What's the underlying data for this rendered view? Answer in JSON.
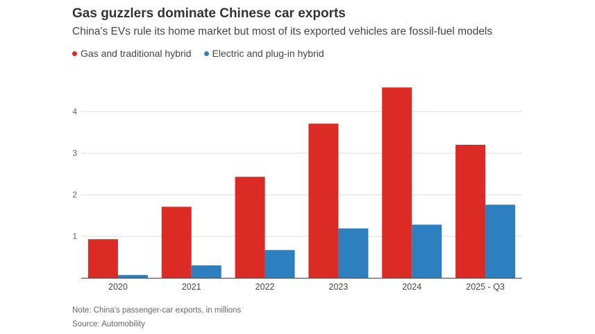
{
  "header": {
    "title": "Gas guzzlers dominate Chinese car exports",
    "subtitle": "China's EVs rule its home market but most of its exported vehicles are fossil-fuel models"
  },
  "footer": {
    "note": "Note: China's passenger-car exports, in millions",
    "source": "Source: Automobility"
  },
  "chart_data": {
    "type": "bar",
    "categories": [
      "2020",
      "2021",
      "2022",
      "2023",
      "2024",
      "2025 - Q3"
    ],
    "series": [
      {
        "name": "Gas and traditional hybrid",
        "color": "#dc2b24",
        "values": [
          0.93,
          1.71,
          2.43,
          3.71,
          4.58,
          3.2
        ]
      },
      {
        "name": "Electric and plug-in hybrid",
        "color": "#2e7fc0",
        "values": [
          0.07,
          0.3,
          0.67,
          1.19,
          1.28,
          1.76
        ]
      }
    ],
    "yticks": [
      1,
      2,
      3,
      4
    ],
    "ylim": [
      0,
      4.8
    ],
    "grid": true,
    "legend_position": "top-left"
  }
}
